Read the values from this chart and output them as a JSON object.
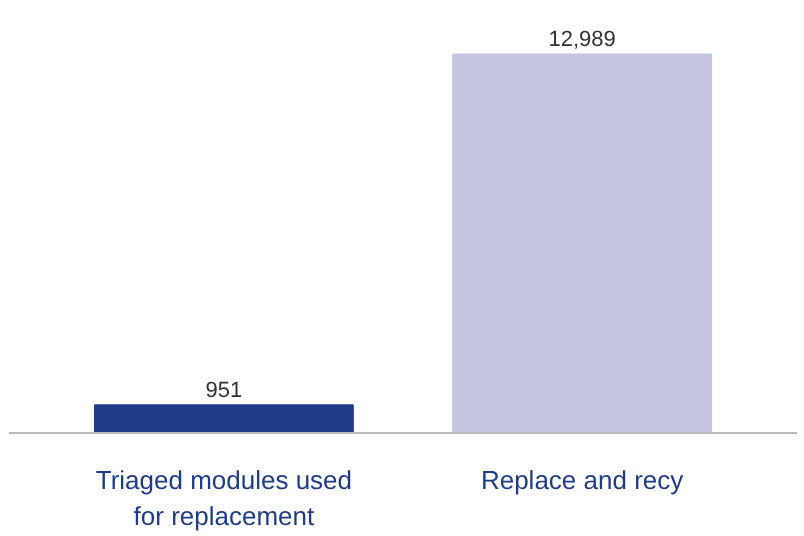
{
  "chart_data": {
    "type": "bar",
    "categories": [
      "Triaged modules used for replacement",
      "Replace and recy"
    ],
    "values": [
      951,
      12989
    ],
    "colors": [
      "#1f3c88",
      "#c3c5e1"
    ],
    "value_labels": [
      "951",
      "12,989"
    ],
    "grid": false
  }
}
